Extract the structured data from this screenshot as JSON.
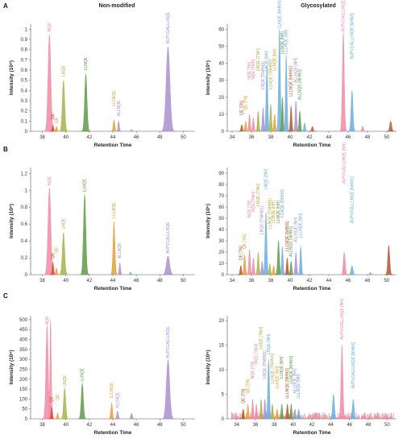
{
  "columns": {
    "left_title": "Non-modified",
    "right_title": "Glycosylated"
  },
  "colors": {
    "pink": "#f08aa3",
    "olive": "#a8b04a",
    "green": "#5f9a47",
    "orange": "#e0a030",
    "purple": "#a98fd0",
    "blue": "#6aaedc",
    "brown": "#b5562e",
    "red": "#d8453a"
  },
  "chart_data": [
    {
      "id": "A-left",
      "panel": "A",
      "type": "line",
      "xlabel": "Retention Time",
      "ylabel": "Intensity (10⁸)",
      "xlim": [
        37,
        51
      ],
      "ylim": [
        0,
        1.05
      ],
      "xticks": [
        38,
        40,
        42,
        44,
        46,
        48,
        50
      ],
      "yticks": [
        0,
        0.1,
        0.2,
        0.3,
        0.4,
        0.5,
        0.6,
        0.7,
        0.8,
        0.9,
        1
      ],
      "peaks": [
        {
          "x": 38.6,
          "h": 0.95,
          "w": 0.12,
          "color": "pink",
          "label": "NQE",
          "lh": 0.97
        },
        {
          "x": 38.9,
          "h": 0.06,
          "w": 0.06,
          "color": "red",
          "label": "QE",
          "lh": 0.11
        },
        {
          "x": 39.2,
          "h": 0.05,
          "w": 0.06,
          "color": "orange",
          "label": "QE",
          "lh": 0.07
        },
        {
          "x": 39.8,
          "h": 0.5,
          "w": 0.1,
          "color": "olive",
          "label": "LNQE",
          "lh": 0.53
        },
        {
          "x": 41.7,
          "h": 0.56,
          "w": 0.1,
          "color": "green",
          "label": "LLNQE",
          "lh": 0.59
        },
        {
          "x": 44.1,
          "h": 0.11,
          "w": 0.07,
          "color": "orange",
          "label": "LLLNQE",
          "lh": 0.24
        },
        {
          "x": 44.5,
          "h": 0.1,
          "w": 0.06,
          "color": "purple",
          "label": "ALLNQE",
          "lh": 0.14
        },
        {
          "x": 45.6,
          "h": 0.02,
          "w": 0.06,
          "color": "purple",
          "label": "",
          "lh": 0
        },
        {
          "x": 48.7,
          "h": 0.83,
          "w": 0.16,
          "color": "purple",
          "label": "AVPVGALLLNQE",
          "lh": 0.85
        }
      ]
    },
    {
      "id": "A-right",
      "panel": "A",
      "type": "line",
      "xlabel": "Retention Time",
      "ylabel": "Intensity (10⁶)",
      "xlim": [
        33.5,
        51
      ],
      "ylim": [
        0,
        63
      ],
      "xticks": [
        34,
        36,
        38,
        40,
        42,
        44,
        46,
        48,
        50
      ],
      "yticks": [
        0,
        10,
        20,
        30,
        40,
        50,
        60
      ],
      "peaks": [
        {
          "x": 35.0,
          "h": 4,
          "w": 0.08,
          "color": "brown",
          "label": "QE [TN]",
          "lh": 9
        },
        {
          "x": 35.4,
          "h": 6,
          "w": 0.08,
          "color": "orange",
          "label": "QE [TN]",
          "lh": 12
        },
        {
          "x": 35.8,
          "h": 10,
          "w": 0.08,
          "color": "pink",
          "label": "NQE [TN]",
          "lh": 30
        },
        {
          "x": 36.2,
          "h": 8,
          "w": 0.08,
          "color": "pink",
          "label": "NQE [TNH]",
          "lh": 30
        },
        {
          "x": 36.7,
          "h": 12,
          "w": 0.08,
          "color": "olive",
          "label": "LNQE [TNH]",
          "lh": 35
        },
        {
          "x": 37.2,
          "h": 14,
          "w": 0.08,
          "color": "purple",
          "label": "LNQE [TNHNS]",
          "lh": 24
        },
        {
          "x": 37.6,
          "h": 38,
          "w": 0.09,
          "color": "blue",
          "label": "LNQE [NH]",
          "lh": 35
        },
        {
          "x": 38.0,
          "h": 16,
          "w": 0.08,
          "color": "olive",
          "label": "LLNQE [TNHNS]",
          "lh": 24
        },
        {
          "x": 38.4,
          "h": 10,
          "w": 0.08,
          "color": "orange",
          "label": "LLNQE [NH]",
          "lh": 35
        },
        {
          "x": 38.9,
          "h": 60,
          "w": 0.09,
          "color": "blue",
          "label": "LLNQE [NHNS]",
          "lh": 60
        },
        {
          "x": 39.2,
          "h": 20,
          "w": 0.08,
          "color": "green",
          "label": "LLNQE [NH]",
          "lh": 45
        },
        {
          "x": 39.6,
          "h": 45,
          "w": 0.08,
          "color": "blue",
          "label": "LLLNQE [NH]",
          "lh": 45
        },
        {
          "x": 40.1,
          "h": 15,
          "w": 0.08,
          "color": "brown",
          "label": "LLLNQE [NHNS]",
          "lh": 20
        },
        {
          "x": 40.6,
          "h": 18,
          "w": 0.08,
          "color": "purple",
          "label": "ALLNQE [NH]",
          "lh": 28
        },
        {
          "x": 41.0,
          "h": 12,
          "w": 0.08,
          "color": "green",
          "label": "ALLNQE [NHNS]",
          "lh": 18
        },
        {
          "x": 41.5,
          "h": 5,
          "w": 0.08,
          "color": "blue",
          "label": "",
          "lh": 0
        },
        {
          "x": 42.3,
          "h": 3,
          "w": 0.08,
          "color": "red",
          "label": "",
          "lh": 0
        },
        {
          "x": 45.5,
          "h": 58,
          "w": 0.1,
          "color": "pink",
          "label": "AVPVGALLLNQE [NH]",
          "lh": 58
        },
        {
          "x": 46.4,
          "h": 24,
          "w": 0.1,
          "color": "blue",
          "label": "AVPVGALLLNQE [NHNS]",
          "lh": 42
        },
        {
          "x": 47.5,
          "h": 3,
          "w": 0.08,
          "color": "pink",
          "label": "",
          "lh": 0
        },
        {
          "x": 50.4,
          "h": 6,
          "w": 0.1,
          "color": "brown",
          "label": "",
          "lh": 0
        }
      ]
    },
    {
      "id": "B-left",
      "panel": "B",
      "type": "line",
      "xlabel": "Retention Time",
      "ylabel": "Intensity (10⁸)",
      "xlim": [
        37,
        51
      ],
      "ylim": [
        0,
        1.27
      ],
      "xticks": [
        38,
        40,
        42,
        44,
        46,
        48,
        50
      ],
      "yticks": [
        0,
        0.2,
        0.4,
        0.6,
        0.8,
        1,
        1.2
      ],
      "peaks": [
        {
          "x": 38.6,
          "h": 1.03,
          "w": 0.12,
          "color": "pink",
          "label": "NQE",
          "lh": 1.05
        },
        {
          "x": 38.9,
          "h": 0.15,
          "w": 0.06,
          "color": "red",
          "label": "QE",
          "lh": 0.18
        },
        {
          "x": 39.2,
          "h": 0.08,
          "w": 0.06,
          "color": "orange",
          "label": "QE",
          "lh": 0.25
        },
        {
          "x": 39.8,
          "h": 0.5,
          "w": 0.1,
          "color": "olive",
          "label": "LNQE",
          "lh": 0.53
        },
        {
          "x": 41.6,
          "h": 0.95,
          "w": 0.1,
          "color": "green",
          "label": "LLNQE",
          "lh": 0.97
        },
        {
          "x": 44.1,
          "h": 0.63,
          "w": 0.08,
          "color": "orange",
          "label": "LLLNQE",
          "lh": 0.66
        },
        {
          "x": 44.6,
          "h": 0.14,
          "w": 0.06,
          "color": "purple",
          "label": "ALLNQE",
          "lh": 0.18
        },
        {
          "x": 45.5,
          "h": 0.03,
          "w": 0.06,
          "color": "blue",
          "label": "",
          "lh": 0
        },
        {
          "x": 48.7,
          "h": 0.22,
          "w": 0.14,
          "color": "purple",
          "label": "AVPVGALLLNQE",
          "lh": 0.24
        }
      ]
    },
    {
      "id": "B-right",
      "panel": "B",
      "type": "line",
      "xlabel": "Retention Time",
      "ylabel": "Intensity (10⁶)",
      "xlim": [
        33.5,
        51
      ],
      "ylim": [
        0,
        95
      ],
      "xticks": [
        34,
        36,
        38,
        40,
        42,
        44,
        46,
        48,
        50
      ],
      "yticks": [
        0,
        10,
        20,
        30,
        40,
        50,
        60,
        70,
        80,
        90
      ],
      "peaks": [
        {
          "x": 34.9,
          "h": 8,
          "w": 0.08,
          "color": "brown",
          "label": "QE [TN]",
          "lh": 12
        },
        {
          "x": 35.3,
          "h": 18,
          "w": 0.08,
          "color": "orange",
          "label": "QE [TN]",
          "lh": 22
        },
        {
          "x": 35.8,
          "h": 22,
          "w": 0.08,
          "color": "pink",
          "label": "NQE [TN]",
          "lh": 50
        },
        {
          "x": 36.2,
          "h": 15,
          "w": 0.08,
          "color": "pink",
          "label": "NQE [TNH]",
          "lh": 55
        },
        {
          "x": 36.7,
          "h": 20,
          "w": 0.08,
          "color": "olive",
          "label": "LNQE [TNH]",
          "lh": 60
        },
        {
          "x": 37.1,
          "h": 12,
          "w": 0.08,
          "color": "purple",
          "label": "LNQE [TNHNS]",
          "lh": 35
        },
        {
          "x": 37.5,
          "h": 55,
          "w": 0.09,
          "color": "blue",
          "label": "LNQE [NH]",
          "lh": 75
        },
        {
          "x": 37.9,
          "h": 10,
          "w": 0.08,
          "color": "olive",
          "label": "LLNQE [TNHNS]",
          "lh": 40
        },
        {
          "x": 38.3,
          "h": 8,
          "w": 0.08,
          "color": "orange",
          "label": "LLNQE [NH]",
          "lh": 45
        },
        {
          "x": 38.8,
          "h": 30,
          "w": 0.09,
          "color": "green",
          "label": "LLNQE [NH]",
          "lh": 45
        },
        {
          "x": 39.2,
          "h": 25,
          "w": 0.08,
          "color": "blue",
          "label": "LLNQE [NHNS]",
          "lh": 50
        },
        {
          "x": 39.7,
          "h": 15,
          "w": 0.08,
          "color": "brown",
          "label": "LLLNQE [NHNS]",
          "lh": 20
        },
        {
          "x": 40.1,
          "h": 12,
          "w": 0.08,
          "color": "green",
          "label": "ALLNQE [NHNS]",
          "lh": 15
        },
        {
          "x": 40.6,
          "h": 20,
          "w": 0.08,
          "color": "purple",
          "label": "ALLNQE [NH]",
          "lh": 28
        },
        {
          "x": 41.1,
          "h": 25,
          "w": 0.08,
          "color": "blue",
          "label": "LLLNQE [NH]",
          "lh": 32
        },
        {
          "x": 45.6,
          "h": 20,
          "w": 0.1,
          "color": "pink",
          "label": "AVPVGALLLNQE [NH]",
          "lh": 80
        },
        {
          "x": 46.4,
          "h": 8,
          "w": 0.1,
          "color": "blue",
          "label": "AVPVGALLLNQE [NHNS]",
          "lh": 45
        },
        {
          "x": 48.3,
          "h": 2,
          "w": 0.08,
          "color": "blue",
          "label": "",
          "lh": 0
        },
        {
          "x": 50.2,
          "h": 26,
          "w": 0.1,
          "color": "brown",
          "label": "",
          "lh": 0
        }
      ]
    },
    {
      "id": "C-left",
      "panel": "C",
      "type": "line",
      "xlabel": "Retention Time",
      "ylabel": "Intensity (10⁶)",
      "xlim": [
        37,
        51
      ],
      "ylim": [
        0,
        520
      ],
      "xticks": [
        38,
        40,
        42,
        44,
        46,
        48,
        50
      ],
      "yticks": [
        0,
        50,
        100,
        150,
        200,
        250,
        300,
        350,
        400,
        450,
        500
      ],
      "peaks": [
        {
          "x": 38.4,
          "h": 470,
          "w": 0.1,
          "color": "pink",
          "label": "NQE",
          "lh": 470
        },
        {
          "x": 38.7,
          "h": 500,
          "w": 0.06,
          "color": "pink",
          "label": "",
          "lh": 0
        },
        {
          "x": 38.8,
          "h": 60,
          "w": 0.06,
          "color": "red",
          "label": "QE",
          "lh": 80
        },
        {
          "x": 39.3,
          "h": 30,
          "w": 0.06,
          "color": "orange",
          "label": "QE",
          "lh": 90
        },
        {
          "x": 39.9,
          "h": 155,
          "w": 0.09,
          "color": "olive",
          "label": "LNQE",
          "lh": 160
        },
        {
          "x": 41.4,
          "h": 180,
          "w": 0.09,
          "color": "green",
          "label": "LLNQE",
          "lh": 185
        },
        {
          "x": 43.9,
          "h": 80,
          "w": 0.07,
          "color": "orange",
          "label": "LLLNQE",
          "lh": 100
        },
        {
          "x": 44.4,
          "h": 40,
          "w": 0.07,
          "color": "purple",
          "label": "ALLNQE",
          "lh": 50
        },
        {
          "x": 45.6,
          "h": 28,
          "w": 0.07,
          "color": "purple",
          "label": "",
          "lh": 0
        },
        {
          "x": 48.7,
          "h": 300,
          "w": 0.14,
          "color": "purple",
          "label": "AVPVGALLLNQE",
          "lh": 302
        }
      ]
    },
    {
      "id": "C-right",
      "panel": "C",
      "type": "line",
      "xlabel": "Retention Time",
      "ylabel": "Intensity (10⁶)",
      "xlim": [
        33,
        51
      ],
      "ylim": [
        0,
        21
      ],
      "xticks": [
        34,
        36,
        38,
        40,
        42,
        44,
        46,
        48,
        50
      ],
      "yticks": [
        0,
        5,
        10,
        15,
        20
      ],
      "noise": true,
      "peaks": [
        {
          "x": 34.7,
          "h": 2,
          "w": 0.08,
          "color": "brown",
          "label": "QE [TN]",
          "lh": 3
        },
        {
          "x": 35.2,
          "h": 3,
          "w": 0.08,
          "color": "orange",
          "label": "QE [TN]",
          "lh": 5
        },
        {
          "x": 35.7,
          "h": 4,
          "w": 0.08,
          "color": "pink",
          "label": "NQE [TN]",
          "lh": 8
        },
        {
          "x": 36.1,
          "h": 3,
          "w": 0.08,
          "color": "pink",
          "label": "NQE [TNH]",
          "lh": 11
        },
        {
          "x": 36.6,
          "h": 4,
          "w": 0.08,
          "color": "olive",
          "label": "LNQE [TNH]",
          "lh": 14
        },
        {
          "x": 37.0,
          "h": 4,
          "w": 0.08,
          "color": "purple",
          "label": "LNQE [TNHNS]",
          "lh": 8
        },
        {
          "x": 37.4,
          "h": 12,
          "w": 0.09,
          "color": "blue",
          "label": "LNQE [NH]",
          "lh": 13
        },
        {
          "x": 37.8,
          "h": 3,
          "w": 0.08,
          "color": "olive",
          "label": "LLNQE [TNHNS]",
          "lh": 7
        },
        {
          "x": 38.3,
          "h": 2,
          "w": 0.08,
          "color": "orange",
          "label": "LLNQE [NH]",
          "lh": 6
        },
        {
          "x": 38.8,
          "h": 3,
          "w": 0.08,
          "color": "green",
          "label": "LLNQE [NH]",
          "lh": 8
        },
        {
          "x": 39.4,
          "h": 3,
          "w": 0.08,
          "color": "brown",
          "label": "LLLNQE [NHNS]",
          "lh": 4
        },
        {
          "x": 39.8,
          "h": 3,
          "w": 0.08,
          "color": "green",
          "label": "LLNQE [NHNS]",
          "lh": 7
        },
        {
          "x": 40.2,
          "h": 2,
          "w": 0.08,
          "color": "purple",
          "label": "ALLNQE [NH]",
          "lh": 5
        },
        {
          "x": 40.6,
          "h": 2,
          "w": 0.08,
          "color": "blue",
          "label": "LLLNQE [NH]",
          "lh": 4
        },
        {
          "x": 44.3,
          "h": 5,
          "w": 0.1,
          "color": "blue",
          "label": "",
          "lh": 0
        },
        {
          "x": 45.2,
          "h": 15,
          "w": 0.1,
          "color": "pink",
          "label": "AVPVGALLLNQE [NH]",
          "lh": 16
        },
        {
          "x": 46.4,
          "h": 4,
          "w": 0.1,
          "color": "blue",
          "label": "AVPVGALLLNQE [NHNS]",
          "lh": 6
        },
        {
          "x": 47.6,
          "h": 1,
          "w": 0.08,
          "color": "pink",
          "label": "",
          "lh": 0
        }
      ]
    }
  ]
}
